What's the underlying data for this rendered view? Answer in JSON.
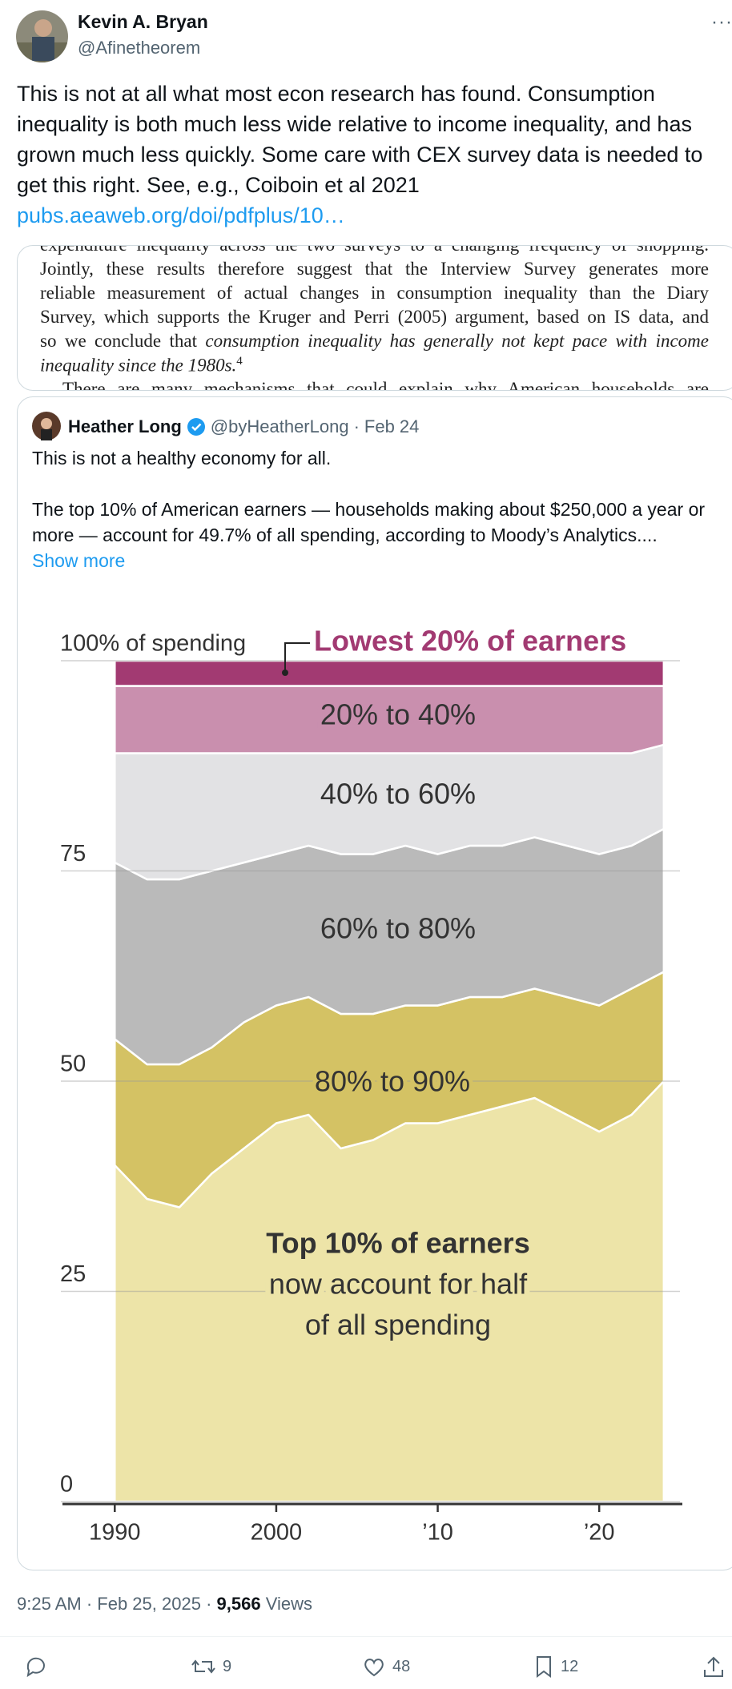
{
  "author": {
    "name": "Kevin A. Bryan",
    "handle": "@Afinetheorem"
  },
  "tweet": {
    "text": "This is not at all what most econ research has found. Consumption inequality is both much less wide relative to income inequality, and has grown much less quickly. Some care with CEX survey data is needed to get this right. See, e.g., Coiboin et al 2021",
    "link": "pubs.aeaweb.org/doi/pdfplus/10…"
  },
  "excerpt": {
    "lines": [
      [
        "expenditure inequality across the two surveys to a changing frequency of shopping."
      ],
      [
        "Jointly, these results therefore suggest that the Interview Survey generates more"
      ],
      [
        "reliable measurement of actual changes in consumption inequality than the Diary"
      ],
      [
        "Survey, which supports the Kruger and Perri (2005) argument, based on IS data, and"
      ],
      [
        "so we conclude that",
        "consumption inequality has generally not kept pace with income"
      ],
      [
        "inequality since the 1980s.",
        "4"
      ],
      [
        "There are many mechanisms that could explain why American households are"
      ]
    ]
  },
  "quoted": {
    "name": "Heather Long",
    "handle": "@byHeatherLong",
    "separator": "·",
    "date": "Feb 24",
    "paragraphs": [
      "This is not a healthy economy for all.",
      "The top 10% of American earners — households making about $250,000 a year or more —  account for 49.7% of all spending, according to Moody’s Analytics...."
    ],
    "show_more": "Show more"
  },
  "chart_data": {
    "type": "stacked_area",
    "x": [
      1990,
      1992,
      1994,
      1996,
      1998,
      2000,
      2002,
      2004,
      2006,
      2008,
      2010,
      2012,
      2014,
      2016,
      2018,
      2020,
      2022,
      2024
    ],
    "series": [
      {
        "name": "Top 10% of earners",
        "color": "#ede4a8",
        "values": [
          40,
          36,
          35,
          39,
          42,
          45,
          46,
          42,
          43,
          45,
          45,
          46,
          47,
          48,
          46,
          44,
          46,
          50
        ]
      },
      {
        "name": "80% to 90%",
        "color": "#d4c264",
        "values": [
          15,
          16,
          17,
          15,
          15,
          14,
          14,
          16,
          15,
          14,
          14,
          14,
          13,
          13,
          14,
          15,
          15,
          13
        ]
      },
      {
        "name": "60% to 80%",
        "color": "#bababa",
        "values": [
          21,
          22,
          22,
          21,
          19,
          18,
          18,
          19,
          19,
          19,
          18,
          18,
          18,
          18,
          18,
          18,
          17,
          17
        ]
      },
      {
        "name": "40% to 60%",
        "color": "#e2e2e4",
        "values": [
          13,
          15,
          15,
          14,
          13,
          12,
          11,
          12,
          12,
          11,
          12,
          11,
          11,
          10,
          11,
          12,
          11,
          10
        ]
      },
      {
        "name": "20% to 40%",
        "color": "#c98fae",
        "values": [
          8,
          8,
          8,
          8,
          8,
          8,
          8,
          8,
          8,
          8,
          8,
          8,
          8,
          8,
          8,
          8,
          8,
          7
        ]
      },
      {
        "name": "Lowest 20% of earners",
        "color": "#a23a72",
        "values": [
          3,
          3,
          3,
          3,
          3,
          3,
          3,
          3,
          3,
          3,
          3,
          3,
          3,
          3,
          3,
          3,
          3,
          3
        ]
      }
    ],
    "annotations": [
      "now account for half",
      "of all spending"
    ],
    "xlim": [
      1987,
      2025
    ],
    "xticks": [
      1990,
      2000,
      {
        "value": 2010,
        "label": "’10"
      },
      {
        "value": 2020,
        "label": "’20"
      }
    ],
    "ylim": [
      0,
      100
    ],
    "yticks": [
      0,
      25,
      50,
      75,
      {
        "value": 100,
        "label": "100% of spending"
      }
    ],
    "grid": true
  },
  "footer": {
    "time": "9:25 AM · Feb 25, 2025",
    "separator": "·",
    "views": "9,566",
    "views_label": "Views"
  },
  "actions": {
    "reposts": "9",
    "likes": "48",
    "bookmarks": "12"
  }
}
